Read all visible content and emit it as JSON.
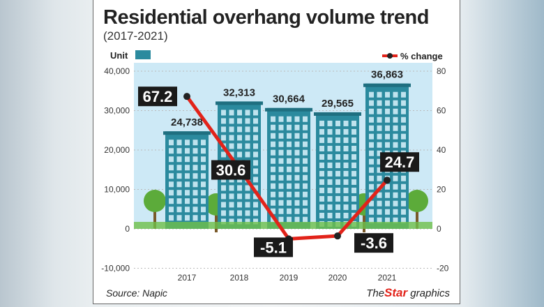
{
  "title": "Residential overhang volume trend",
  "subtitle": "(2017-2021)",
  "source": "Source: Napic",
  "brand": {
    "the": "The",
    "star": "Star",
    "graphics": "graphics"
  },
  "chart_data": {
    "type": "bar+line",
    "categories": [
      "2017",
      "2018",
      "2019",
      "2020",
      "2021"
    ],
    "left_axis": {
      "label": "Unit",
      "range": [
        -10000,
        40000
      ],
      "ticks": [
        "40,000",
        "30,000",
        "20,000",
        "10,000",
        "0",
        "-10,000"
      ],
      "tick_values": [
        40000,
        30000,
        20000,
        10000,
        0,
        -10000
      ]
    },
    "right_axis": {
      "range": [
        -20,
        80
      ],
      "ticks": [
        "80",
        "60",
        "40",
        "20",
        "0",
        "-20"
      ],
      "tick_values": [
        80,
        60,
        40,
        20,
        0,
        -20
      ]
    },
    "series": [
      {
        "type": "bar",
        "values": [
          24738,
          32313,
          30664,
          29565,
          36863
        ],
        "labels": [
          "24,738",
          "32,313",
          "30,664",
          "29,565",
          "36,863"
        ]
      },
      {
        "type": "line",
        "name": "% change",
        "values": [
          67.2,
          30.6,
          -5.1,
          -3.6,
          24.7
        ],
        "labels": [
          "67.2",
          "30.6",
          "-5.1",
          "-3.6",
          "24.7"
        ],
        "color": "#e2231a"
      }
    ],
    "colors": {
      "building": "#2b8a9e",
      "sky": "#cde9f6",
      "line": "#e2231a",
      "label_box": "#1a1a1a"
    }
  }
}
